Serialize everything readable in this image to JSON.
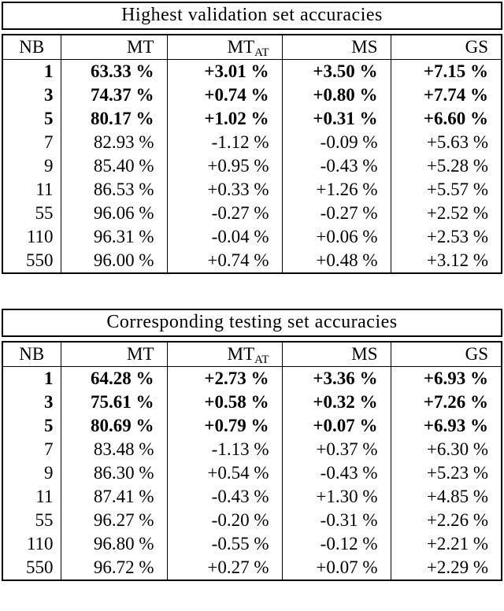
{
  "tables": [
    {
      "title": "Highest validation set accuracies",
      "headers": [
        {
          "label": "NB"
        },
        {
          "label": "MT"
        },
        {
          "label": "MT",
          "sub": "AT"
        },
        {
          "label": "MS"
        },
        {
          "label": "GS"
        }
      ],
      "rows": [
        {
          "bold": true,
          "cells": [
            "1",
            "63.33 %",
            "+3.01 %",
            "+3.50 %",
            "+7.15 %"
          ]
        },
        {
          "bold": true,
          "cells": [
            "3",
            "74.37 %",
            "+0.74 %",
            "+0.80 %",
            "+7.74 %"
          ]
        },
        {
          "bold": true,
          "cells": [
            "5",
            "80.17 %",
            "+1.02 %",
            "+0.31 %",
            "+6.60 %"
          ]
        },
        {
          "bold": false,
          "cells": [
            "7",
            "82.93 %",
            "-1.12 %",
            "-0.09 %",
            "+5.63 %"
          ]
        },
        {
          "bold": false,
          "cells": [
            "9",
            "85.40 %",
            "+0.95 %",
            "-0.43 %",
            "+5.28 %"
          ]
        },
        {
          "bold": false,
          "cells": [
            "11",
            "86.53 %",
            "+0.33 %",
            "+1.26 %",
            "+5.57 %"
          ]
        },
        {
          "bold": false,
          "cells": [
            "55",
            "96.06 %",
            "-0.27 %",
            "-0.27 %",
            "+2.52 %"
          ]
        },
        {
          "bold": false,
          "cells": [
            "110",
            "96.31 %",
            "-0.04 %",
            "+0.06 %",
            "+2.53 %"
          ]
        },
        {
          "bold": false,
          "cells": [
            "550",
            "96.00 %",
            "+0.74 %",
            "+0.48 %",
            "+3.12 %"
          ]
        }
      ]
    },
    {
      "title": "Corresponding testing set accuracies",
      "headers": [
        {
          "label": "NB"
        },
        {
          "label": "MT"
        },
        {
          "label": "MT",
          "sub": "AT"
        },
        {
          "label": "MS"
        },
        {
          "label": "GS"
        }
      ],
      "rows": [
        {
          "bold": true,
          "cells": [
            "1",
            "64.28 %",
            "+2.73 %",
            "+3.36 %",
            "+6.93 %"
          ]
        },
        {
          "bold": true,
          "cells": [
            "3",
            "75.61 %",
            "+0.58 %",
            "+0.32 %",
            "+7.26 %"
          ]
        },
        {
          "bold": true,
          "cells": [
            "5",
            "80.69 %",
            "+0.79 %",
            "+0.07 %",
            "+6.93 %"
          ]
        },
        {
          "bold": false,
          "cells": [
            "7",
            "83.48 %",
            "-1.13 %",
            "+0.37 %",
            "+6.30 %"
          ]
        },
        {
          "bold": false,
          "cells": [
            "9",
            "86.30 %",
            "+0.54 %",
            "-0.43 %",
            "+5.23 %"
          ]
        },
        {
          "bold": false,
          "cells": [
            "11",
            "87.41 %",
            "-0.43 %",
            "+1.30 %",
            "+4.85 %"
          ]
        },
        {
          "bold": false,
          "cells": [
            "55",
            "96.27 %",
            "-0.20 %",
            "-0.31 %",
            "+2.26 %"
          ]
        },
        {
          "bold": false,
          "cells": [
            "110",
            "96.80 %",
            "-0.55 %",
            "-0.12 %",
            "+2.21 %"
          ]
        },
        {
          "bold": false,
          "cells": [
            "550",
            "96.72 %",
            "+0.27 %",
            "+0.07 %",
            "+2.29 %"
          ]
        }
      ]
    }
  ]
}
